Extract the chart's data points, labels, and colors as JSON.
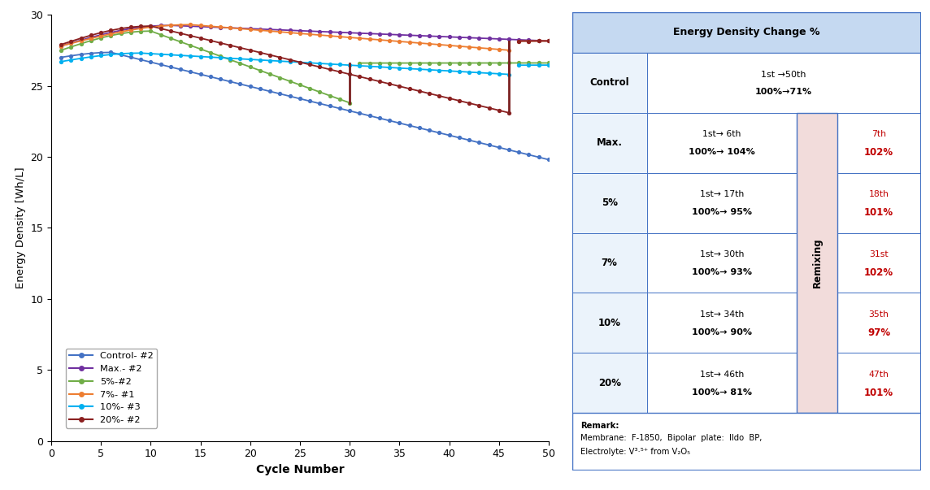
{
  "series": [
    {
      "name": "Control- #2",
      "color": "#4472C4",
      "start": 27.0,
      "peak_val": 27.35,
      "peak_cycle": 6,
      "end": 19.8,
      "remix_cycle": null,
      "remix_val": null,
      "post_end": null
    },
    {
      "name": "Max.- #2",
      "color": "#7030A0",
      "start": 27.8,
      "peak_val": 29.25,
      "peak_cycle": 12,
      "end": 28.15,
      "remix_cycle": null,
      "remix_val": null,
      "post_end": null
    },
    {
      "name": "5%-#2",
      "color": "#70AD47",
      "start": 27.5,
      "peak_val": 28.85,
      "peak_cycle": 10,
      "end": 23.8,
      "remix_cycle": 30,
      "remix_val": 23.8,
      "post_end": 26.65
    },
    {
      "name": "7%- #1",
      "color": "#ED7D31",
      "start": 27.8,
      "peak_val": 29.3,
      "peak_cycle": 14,
      "end": 27.5,
      "remix_cycle": 46,
      "remix_val": 27.5,
      "post_end": 28.2
    },
    {
      "name": "10%- #3",
      "color": "#00B0F0",
      "start": 26.7,
      "peak_val": 27.3,
      "peak_cycle": 9,
      "end": 25.8,
      "remix_cycle": 46,
      "remix_val": 25.8,
      "post_end": 26.5
    },
    {
      "name": "20%- #2",
      "color": "#8B2020",
      "start": 27.9,
      "peak_val": 29.2,
      "peak_cycle": 10,
      "end": 23.1,
      "remix_cycle": 46,
      "remix_val": 23.1,
      "post_end": 28.2
    }
  ],
  "xlabel": "Cycle Number",
  "ylabel": "Energy Density [Wh/L]",
  "xlim": [
    0,
    50
  ],
  "ylim": [
    0,
    30
  ],
  "yticks": [
    0,
    5,
    10,
    15,
    20,
    25,
    30
  ],
  "xticks": [
    0,
    5,
    10,
    15,
    20,
    25,
    30,
    35,
    40,
    45,
    50
  ],
  "remix_line_color": "#7B2020",
  "background_color": "#FFFFFF",
  "border_color": "#4472C4",
  "header_bg": "#C5D9F1",
  "row_bg": "#EBF3FB",
  "row_bg2": "#FFFFFF",
  "remixing_bg": "#F2DCDB",
  "table_rows": [
    {
      "label": "Control",
      "col1_line1": "1st →50th",
      "col1_line2": "100%→71%",
      "has_remix": false,
      "col3_line1": "",
      "col3_line2": ""
    },
    {
      "label": "Max.",
      "col1_line1": "1st→ 6th",
      "col1_line2": "100%→ 104%",
      "has_remix": true,
      "col3_line1": "7th",
      "col3_line2": "102%"
    },
    {
      "label": "5%",
      "col1_line1": "1st→ 17th",
      "col1_line2": "100%→ 95%",
      "has_remix": true,
      "col3_line1": "18th",
      "col3_line2": "101%"
    },
    {
      "label": "7%",
      "col1_line1": "1st→ 30th",
      "col1_line2": "100%→ 93%",
      "has_remix": true,
      "col3_line1": "31st",
      "col3_line2": "102%"
    },
    {
      "label": "10%",
      "col1_line1": "1st→ 34th",
      "col1_line2": "100%→ 90%",
      "has_remix": true,
      "col3_line1": "35th",
      "col3_line2": "97%"
    },
    {
      "label": "20%",
      "col1_line1": "1st→ 46th",
      "col1_line2": "100%→ 81%",
      "has_remix": true,
      "col3_line1": "47th",
      "col3_line2": "101%"
    }
  ]
}
